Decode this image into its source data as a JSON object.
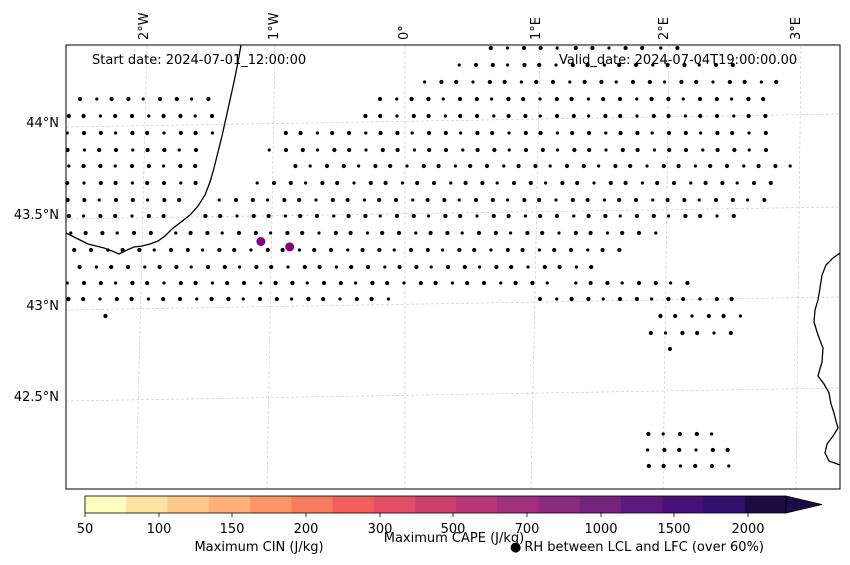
{
  "map": {
    "start_label": "Start date: 2024-07-01_12:00:00",
    "valid_label": "Valid_date: 2024-07-04T19:00:00.00",
    "lon_labels": [
      "2°W",
      "1°W",
      "0°",
      "1°E",
      "2°E",
      "3°E"
    ],
    "lat_labels": [
      "44°N",
      "43.5°N",
      "43°N",
      "42.5°N"
    ],
    "coastline_color": "#000000",
    "grid_color": "#cccccc",
    "cape_points_color": "#800080",
    "cape_points": [
      {
        "lon": -1.1,
        "lat": 43.38
      },
      {
        "lon": -0.88,
        "lat": 43.35
      }
    ]
  },
  "colorbar": {
    "tick_labels": [
      "50",
      "100",
      "150",
      "200",
      "300",
      "500",
      "700",
      "1000",
      "1500",
      "2000"
    ],
    "colors": [
      "#fcfdbf",
      "#fde3a2",
      "#fec98a",
      "#feb078",
      "#fd9568",
      "#f97b5d",
      "#f1605d",
      "#e34e65",
      "#cd416f",
      "#b73779",
      "#a1307e",
      "#8c2981",
      "#76237d",
      "#5f187f",
      "#4a1079",
      "#33106e",
      "#1b0c41"
    ],
    "extend": "max",
    "label_cin": "Maximum CIN (J/kg)",
    "label_cin_color": "#ff0000",
    "label_cape": "Maximum CAPE (J/kg)",
    "legend_rh": "RH between LCL and LFC (over 60%)",
    "legend_marker": "●"
  }
}
